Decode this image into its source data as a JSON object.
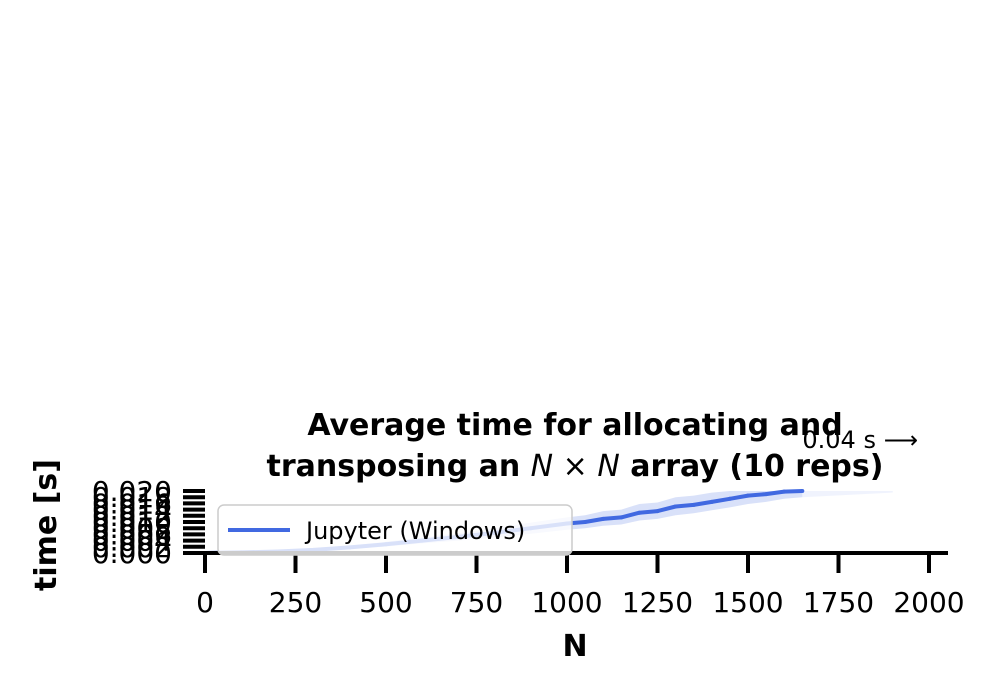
{
  "chart_data": {
    "type": "line",
    "title_line1": "Average time for allocating and",
    "title_line2_pre": "transposing an ",
    "title_line2_math": "N × N",
    "title_line2_post": " array (10 reps)",
    "xlabel": "N",
    "ylabel": "time [s]",
    "xlim": [
      0,
      2000
    ],
    "ylim": [
      0,
      0.02
    ],
    "x_ticks": [
      "0",
      "250",
      "500",
      "750",
      "1000",
      "1250",
      "1500",
      "1750",
      "2000"
    ],
    "x_tick_values": [
      0,
      250,
      500,
      750,
      1000,
      1250,
      1500,
      1750,
      2000
    ],
    "y_ticks": [
      "0.000",
      "0.002",
      "0.004",
      "0.006",
      "0.008",
      "0.010",
      "0.012",
      "0.014",
      "0.016",
      "0.018",
      "0.020"
    ],
    "y_tick_values": [
      0,
      0.002,
      0.004,
      0.006,
      0.008,
      0.01,
      0.012,
      0.014,
      0.016,
      0.018,
      0.02
    ],
    "annotation": "0.04 s ⟶",
    "grid": false,
    "legend_position": "lower-left",
    "series": [
      {
        "name": "Jupyter (Windows)",
        "color": "#4169e1",
        "x": [
          0,
          100,
          200,
          300,
          400,
          500,
          600,
          700,
          800,
          900,
          1000,
          1050,
          1100,
          1150,
          1200,
          1250,
          1300,
          1350,
          1400,
          1450,
          1500,
          1550,
          1600,
          1650
        ],
        "y": [
          0.0,
          0.0002,
          0.0005,
          0.001,
          0.0018,
          0.0028,
          0.004,
          0.0052,
          0.0065,
          0.008,
          0.0095,
          0.01,
          0.011,
          0.0115,
          0.013,
          0.0135,
          0.015,
          0.0155,
          0.0165,
          0.0175,
          0.0185,
          0.019,
          0.0198,
          0.02
        ],
        "band_low": [
          0.0,
          0.0001,
          0.0003,
          0.0007,
          0.0013,
          0.0021,
          0.0031,
          0.004,
          0.005,
          0.0062,
          0.0075,
          0.008,
          0.0088,
          0.0092,
          0.0105,
          0.011,
          0.0122,
          0.0128,
          0.0138,
          0.0147,
          0.0158,
          0.0165,
          0.0175,
          0.018
        ],
        "band_high": [
          0.0001,
          0.0004,
          0.0008,
          0.0014,
          0.0024,
          0.0036,
          0.005,
          0.0064,
          0.008,
          0.0098,
          0.0115,
          0.0122,
          0.0135,
          0.014,
          0.0158,
          0.0163,
          0.018,
          0.0185,
          0.0195,
          0.02,
          0.02,
          0.02,
          0.02,
          0.02
        ]
      }
    ]
  }
}
